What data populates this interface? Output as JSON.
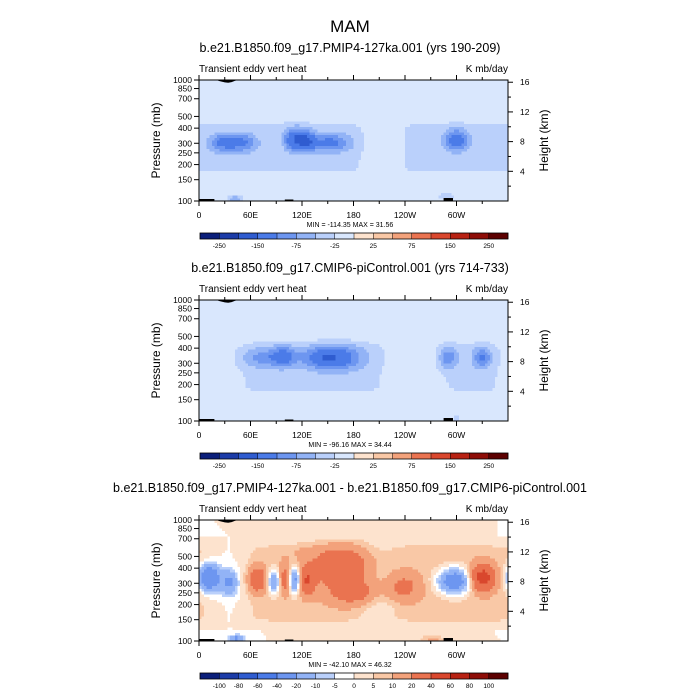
{
  "main_title": "MAM",
  "colors": {
    "background": "#ffffff",
    "text": "#000000",
    "terrain": "#000000",
    "contour_stroke": "#ffffff"
  },
  "chart_data": [
    {
      "type": "heatmap",
      "id": "p1",
      "title": "b.e21.B1850.f09_g17.PMIP4-127ka.001 (yrs 190-209)",
      "left_string": "Transient eddy vert heat",
      "right_string": "K mb/day",
      "ylabel": "Pressure (mb)",
      "ylabel_right": "Height (km)",
      "x_ticks": [
        {
          "lon": 0,
          "label": "0"
        },
        {
          "lon": 60,
          "label": "60E"
        },
        {
          "lon": 120,
          "label": "120E"
        },
        {
          "lon": 180,
          "label": "180"
        },
        {
          "lon": 240,
          "label": "120W"
        },
        {
          "lon": 300,
          "label": "60W"
        }
      ],
      "y_ticks": [
        100,
        150,
        200,
        250,
        300,
        400,
        500,
        700,
        850,
        1000
      ],
      "height_ticks": [
        4,
        8,
        12,
        16
      ],
      "ylim": [
        1000,
        100
      ],
      "xlim": [
        0,
        360
      ],
      "min_max_label": "MIN = -114.35  MAX = 31.56",
      "levels": [
        -250,
        -200,
        -150,
        -100,
        -75,
        -50,
        -25,
        0,
        25,
        50,
        75,
        100,
        150,
        200,
        250
      ],
      "level_labels": [
        "-250",
        "-150",
        "-75",
        "-25",
        "25",
        "75",
        "150",
        "250"
      ],
      "palette": [
        "#0b1f7a",
        "#1c3ca8",
        "#2f5cd0",
        "#4b7be8",
        "#6d96f0",
        "#92b3f6",
        "#bad0fb",
        "#d9e7fd",
        "#fde3ce",
        "#f9c8a6",
        "#f3a27b",
        "#ea7350",
        "#d9472d",
        "#b82213",
        "#8e0d07",
        "#5c0000"
      ],
      "background_level_index": 8,
      "features": [
        {
          "lon": 28,
          "p": 330,
          "lon_w": 12,
          "p_w": 45,
          "value": -78
        },
        {
          "lon": 52,
          "p": 330,
          "lon_w": 12,
          "p_w": 45,
          "value": -70
        },
        {
          "lon": 112,
          "p": 310,
          "lon_w": 9,
          "p_w": 50,
          "value": -114
        },
        {
          "lon": 126,
          "p": 320,
          "lon_w": 7,
          "p_w": 45,
          "value": -86
        },
        {
          "lon": 152,
          "p": 330,
          "lon_w": 18,
          "p_w": 45,
          "value": -82
        },
        {
          "lon": 300,
          "p": 315,
          "lon_w": 10,
          "p_w": 48,
          "value": -105
        },
        {
          "lon": 42,
          "p": 950,
          "lon_w": 6,
          "p_w": 40,
          "value": -80
        },
        {
          "lon": 288,
          "p": 920,
          "lon_w": 8,
          "p_w": 60,
          "value": -40
        }
      ],
      "broad": {
        "value": -30,
        "p_top": 190,
        "p_bot": 690,
        "gaps": [
          {
            "lon": 213,
            "w": 14
          }
        ]
      }
    },
    {
      "type": "heatmap",
      "id": "p2",
      "title": "b.e21.B1850.f09_g17.CMIP6-piControl.001 (yrs 714-733)",
      "left_string": "Transient eddy vert heat",
      "right_string": "K mb/day",
      "ylabel": "Pressure (mb)",
      "ylabel_right": "Height (km)",
      "x_ticks": [
        {
          "lon": 0,
          "label": "0"
        },
        {
          "lon": 60,
          "label": "60E"
        },
        {
          "lon": 120,
          "label": "120E"
        },
        {
          "lon": 180,
          "label": "180"
        },
        {
          "lon": 240,
          "label": "120W"
        },
        {
          "lon": 300,
          "label": "60W"
        }
      ],
      "y_ticks": [
        100,
        150,
        200,
        250,
        300,
        400,
        500,
        700,
        850,
        1000
      ],
      "height_ticks": [
        4,
        8,
        12,
        16
      ],
      "ylim": [
        1000,
        100
      ],
      "xlim": [
        0,
        360
      ],
      "min_max_label": "MIN = -96.16  MAX = 34.44",
      "levels": [
        -250,
        -200,
        -150,
        -100,
        -75,
        -50,
        -25,
        0,
        25,
        50,
        75,
        100,
        150,
        200,
        250
      ],
      "level_labels": [
        "-250",
        "-150",
        "-75",
        "-25",
        "25",
        "75",
        "150",
        "250"
      ],
      "palette": [
        "#0b1f7a",
        "#1c3ca8",
        "#2f5cd0",
        "#4b7be8",
        "#6d96f0",
        "#92b3f6",
        "#bad0fb",
        "#d9e7fd",
        "#fde3ce",
        "#f9c8a6",
        "#f3a27b",
        "#ea7350",
        "#d9472d",
        "#b82213",
        "#8e0d07",
        "#5c0000"
      ],
      "background_level_index": 8,
      "features": [
        {
          "lon": 78,
          "p": 300,
          "lon_w": 20,
          "p_w": 45,
          "value": -60
        },
        {
          "lon": 100,
          "p": 290,
          "lon_w": 10,
          "p_w": 45,
          "value": -62
        },
        {
          "lon": 146,
          "p": 300,
          "lon_w": 18,
          "p_w": 50,
          "value": -96
        },
        {
          "lon": 170,
          "p": 300,
          "lon_w": 20,
          "p_w": 60,
          "value": -55
        },
        {
          "lon": 290,
          "p": 300,
          "lon_w": 8,
          "p_w": 50,
          "value": -70
        },
        {
          "lon": 330,
          "p": 300,
          "lon_w": 8,
          "p_w": 45,
          "value": -78
        },
        {
          "lon": 300,
          "p": 940,
          "lon_w": 5,
          "p_w": 40,
          "value": -40
        }
      ],
      "broad": {
        "value": -30,
        "p_top": 190,
        "p_bot": 690,
        "gaps": [
          {
            "lon": 20,
            "w": 18
          },
          {
            "lon": 250,
            "w": 22
          }
        ]
      }
    },
    {
      "type": "heatmap",
      "id": "p3",
      "title": "b.e21.B1850.f09_g17.PMIP4-127ka.001 - b.e21.B1850.f09_g17.CMIP6-piControl.001",
      "left_string": "Transient eddy vert heat",
      "right_string": "K mb/day",
      "ylabel": "Pressure (mb)",
      "ylabel_right": "Height (km)",
      "x_ticks": [
        {
          "lon": 0,
          "label": "0"
        },
        {
          "lon": 60,
          "label": "60E"
        },
        {
          "lon": 120,
          "label": "120E"
        },
        {
          "lon": 180,
          "label": "180"
        },
        {
          "lon": 240,
          "label": "120W"
        },
        {
          "lon": 300,
          "label": "60W"
        }
      ],
      "y_ticks": [
        100,
        150,
        200,
        250,
        300,
        400,
        500,
        700,
        850,
        1000
      ],
      "height_ticks": [
        4,
        8,
        12,
        16
      ],
      "ylim": [
        1000,
        100
      ],
      "xlim": [
        0,
        360
      ],
      "min_max_label": "MIN = -42.10  MAX = 46.32",
      "levels": [
        -100,
        -80,
        -60,
        -40,
        -20,
        -10,
        -5,
        0,
        5,
        10,
        20,
        40,
        60,
        80,
        100
      ],
      "level_labels": [
        "-100",
        "-80",
        "-60",
        "-40",
        "-20",
        "-10",
        "-5",
        "0",
        "5",
        "10",
        "20",
        "40",
        "60",
        "80",
        "100"
      ],
      "palette": [
        "#0b1f7a",
        "#1c3ca8",
        "#2f5cd0",
        "#4b7be8",
        "#6d96f0",
        "#92b3f6",
        "#bad0fb",
        "#ffffff",
        "#fde3ce",
        "#f9c8a6",
        "#f3a27b",
        "#ea7350",
        "#d9472d",
        "#b82213",
        "#8e0d07",
        "#5c0000"
      ],
      "background_level_index": 7,
      "features": [
        {
          "lon": 12,
          "p": 300,
          "lon_w": 9,
          "p_w": 60,
          "value": -42
        },
        {
          "lon": 36,
          "p": 330,
          "lon_w": 7,
          "p_w": 60,
          "value": -22
        },
        {
          "lon": 68,
          "p": 310,
          "lon_w": 8,
          "p_w": 60,
          "value": 28
        },
        {
          "lon": 88,
          "p": 320,
          "lon_w": 6,
          "p_w": 60,
          "value": -30
        },
        {
          "lon": 100,
          "p": 310,
          "lon_w": 6,
          "p_w": 60,
          "value": 26
        },
        {
          "lon": 111,
          "p": 310,
          "lon_w": 5,
          "p_w": 60,
          "value": -38
        },
        {
          "lon": 126,
          "p": 320,
          "lon_w": 6,
          "p_w": 60,
          "value": 30
        },
        {
          "lon": 168,
          "p": 240,
          "lon_w": 30,
          "p_w": 80,
          "value": 24
        },
        {
          "lon": 182,
          "p": 400,
          "lon_w": 20,
          "p_w": 70,
          "value": 20
        },
        {
          "lon": 238,
          "p": 360,
          "lon_w": 14,
          "p_w": 70,
          "value": 18
        },
        {
          "lon": 298,
          "p": 320,
          "lon_w": 14,
          "p_w": 60,
          "value": -40
        },
        {
          "lon": 330,
          "p": 300,
          "lon_w": 10,
          "p_w": 55,
          "value": 46
        },
        {
          "lon": 44,
          "p": 950,
          "lon_w": 6,
          "p_w": 45,
          "value": -25
        },
        {
          "lon": 272,
          "p": 960,
          "lon_w": 12,
          "p_w": 40,
          "value": 12
        }
      ],
      "broad": {
        "value": 8,
        "p_top": 140,
        "p_bot": 800,
        "gaps": [
          {
            "lon": 35,
            "w": 20
          },
          {
            "lon": 208,
            "w": 16
          }
        ]
      }
    }
  ]
}
